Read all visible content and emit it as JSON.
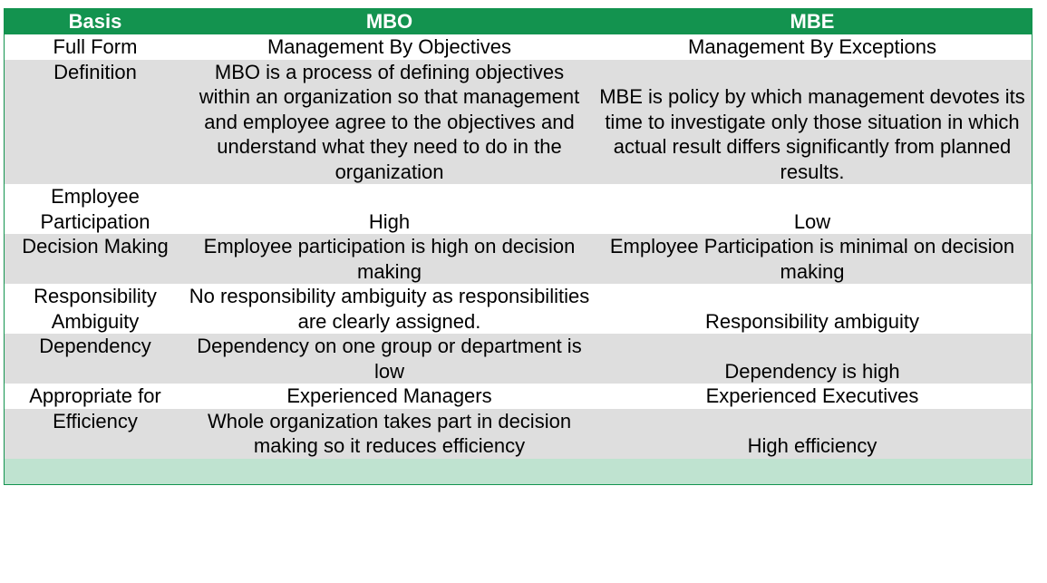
{
  "table": {
    "headers": [
      "Basis",
      "MBO",
      "MBE"
    ],
    "rows": [
      {
        "basis": "Full Form",
        "mbo": "Management By Objectives",
        "mbe": "Management By Exceptions"
      },
      {
        "basis": "Definition",
        "mbo": "MBO is a process of defining objectives within an organization so that management and employee agree to the objectives and understand what they need to do in the organization",
        "mbe": "MBE is policy by which management devotes its time to investigate only those situation in which actual result differs significantly from planned results."
      },
      {
        "basis": "Employee Participation",
        "mbo": "High",
        "mbe": "Low"
      },
      {
        "basis": "Decision Making",
        "mbo": "Employee participation is high on decision making",
        "mbe": "Employee Participation is minimal on decision making"
      },
      {
        "basis": "Responsibility Ambiguity",
        "mbo": "No responsibility ambiguity as responsibilities are clearly assigned.",
        "mbe": "Responsibility ambiguity"
      },
      {
        "basis": "Dependency",
        "mbo": "Dependency on one group or department is low",
        "mbe": "Dependency is high"
      },
      {
        "basis": "Appropriate for",
        "mbo": "Experienced Managers",
        "mbe": "Experienced Executives"
      },
      {
        "basis": "Efficiency",
        "mbo": "Whole organization takes part in decision making so it reduces efficiency",
        "mbe": "High efficiency"
      }
    ]
  },
  "colors": {
    "header_bg": "#13934f",
    "header_text": "#ffffff",
    "row_alt_bg": "#dedede",
    "footer_bg": "#bfe3d0"
  }
}
